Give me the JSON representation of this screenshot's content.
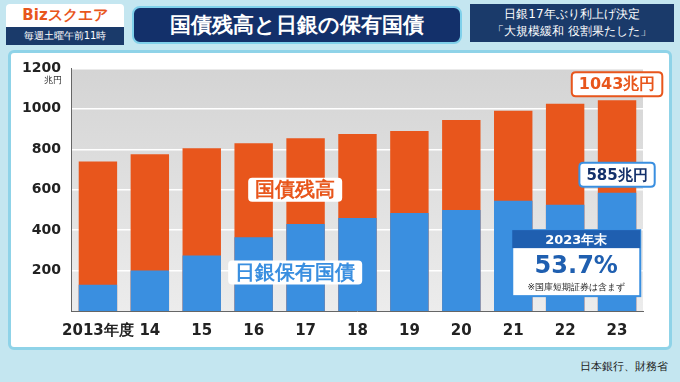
{
  "header": {
    "logo": "Bizスクエア",
    "schedule": "毎週土曜午前11時",
    "headline": [
      "日銀17年ぶり利上げ決定",
      "「大規模緩和 役割果たした」"
    ]
  },
  "source": "日本銀行、財務省",
  "chart_data": {
    "type": "bar",
    "title": "国債残高と日銀の保有国債",
    "y_label": "兆円",
    "categories": [
      "2013年度",
      "14",
      "15",
      "16",
      "17",
      "18",
      "19",
      "20",
      "21",
      "22",
      "23"
    ],
    "series": [
      {
        "name": "国債残高",
        "color": "#e8561c",
        "values": [
          740,
          775,
          805,
          830,
          855,
          875,
          890,
          945,
          990,
          1025,
          1043
        ]
      },
      {
        "name": "日銀保有国債",
        "color": "#3a8fe0",
        "values": [
          130,
          200,
          275,
          365,
          430,
          460,
          485,
          500,
          545,
          525,
          585
        ]
      }
    ],
    "stacked": false,
    "ylim": [
      0,
      1200
    ],
    "yticks": [
      200,
      400,
      600,
      800,
      1000,
      1200
    ],
    "grid": true,
    "annotations": {
      "last_total": "1043兆円",
      "last_boj": "585兆円",
      "share_date": "2023年末",
      "share": "53.7%",
      "note": "※国庫短期証券は含まず"
    }
  }
}
